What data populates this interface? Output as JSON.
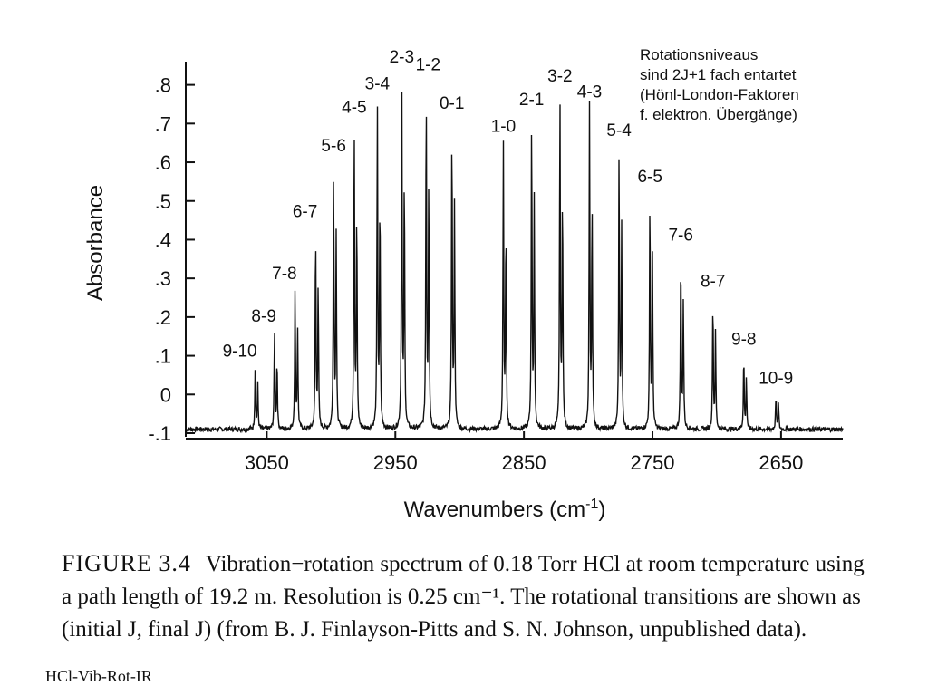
{
  "chart_data": {
    "type": "line",
    "xlabel": "Wavenumbers (cm",
    "xlabel_sup": "-1",
    "xlabel_close": ")",
    "ylabel": "Absorbance",
    "xlim": [
      3113,
      2602
    ],
    "ylim": [
      -0.1,
      0.86
    ],
    "x_ticks": [
      3050,
      2950,
      2850,
      2750,
      2650
    ],
    "x_tick_labels": [
      "3050",
      "2950",
      "2850",
      "2750",
      "2650"
    ],
    "y_ticks": [
      0.8,
      0.7,
      0.6,
      0.5,
      0.4,
      0.3,
      0.2,
      0.1,
      0,
      -0.1
    ],
    "y_tick_labels": [
      ".8",
      ".7",
      ".6",
      ".5",
      ".4",
      ".3",
      ".2",
      ".1",
      "0",
      "-.1"
    ],
    "grid": false,
    "baseline": -0.09,
    "peaks": [
      {
        "label": "9-10",
        "x": 3059,
        "y": 0.07
      },
      {
        "label": "8-9",
        "x": 3044,
        "y": 0.16
      },
      {
        "label": "7-8",
        "x": 3028,
        "y": 0.27
      },
      {
        "label": "6-7",
        "x": 3012,
        "y": 0.43
      },
      {
        "label": "5-6",
        "x": 2998,
        "y": 0.6
      },
      {
        "label": "4-5",
        "x": 2982,
        "y": 0.7
      },
      {
        "label": "3-4",
        "x": 2964,
        "y": 0.76
      },
      {
        "label": "2-3",
        "x": 2945,
        "y": 0.83
      },
      {
        "label": "1-2",
        "x": 2926,
        "y": 0.81
      },
      {
        "label": "0-1",
        "x": 2906,
        "y": 0.71
      },
      {
        "label": "1-0",
        "x": 2866,
        "y": 0.65
      },
      {
        "label": "2-1",
        "x": 2844,
        "y": 0.72
      },
      {
        "label": "3-2",
        "x": 2822,
        "y": 0.78
      },
      {
        "label": "4-3",
        "x": 2799,
        "y": 0.74
      },
      {
        "label": "5-4",
        "x": 2776,
        "y": 0.64
      },
      {
        "label": "6-5",
        "x": 2752,
        "y": 0.52
      },
      {
        "label": "7-6",
        "x": 2728,
        "y": 0.37
      },
      {
        "label": "8-7",
        "x": 2703,
        "y": 0.25
      },
      {
        "label": "9-8",
        "x": 2679,
        "y": 0.1
      },
      {
        "label": "10-9",
        "x": 2654,
        "y": 0.0
      }
    ],
    "isotope_ratio": 0.72,
    "isotope_shift": 2.0
  },
  "annotation": {
    "lines": [
      "Rotationsniveaus",
      "sind 2J+1  fach entartet",
      "(Hönl-London-Faktoren",
      "f. elektron. Übergänge)"
    ]
  },
  "caption": {
    "label": "FIGURE 3.4",
    "text": "Vibration−rotation spectrum of 0.18 Torr HCl at room temperature using a path length of 19.2 m. Resolution is 0.25 cm⁻¹. The rotational transitions are shown as (initial J, final J) (from B. J. Finlayson-Pitts and S. N. Johnson, unpublished data)."
  },
  "footer": {
    "label": "HCl-Vib-Rot-IR"
  }
}
